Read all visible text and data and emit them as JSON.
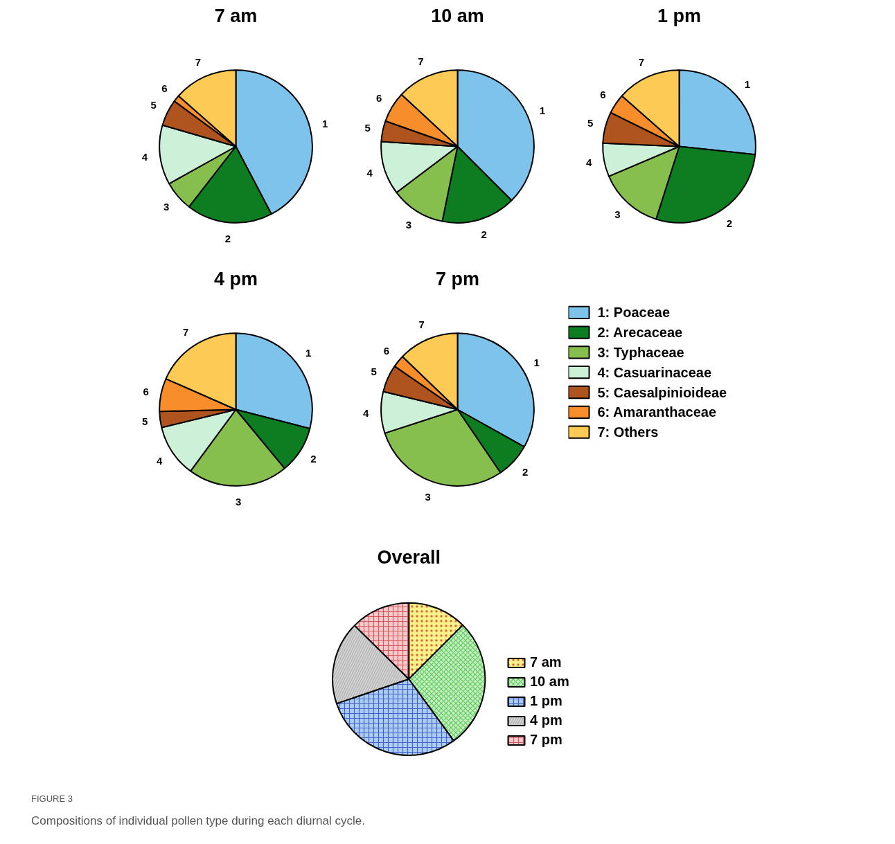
{
  "chart_data": [
    {
      "type": "pie",
      "title": "7 am",
      "categories": [
        "1",
        "2",
        "3",
        "4",
        "5",
        "6",
        "7"
      ],
      "values": [
        42.3,
        18.2,
        6.4,
        12.6,
        5.6,
        1.4,
        13.5
      ],
      "colors": [
        "#7dc3ec",
        "#0e7d22",
        "#86bf4e",
        "#cdf0d8",
        "#b0541f",
        "#f88e2b",
        "#fdca55"
      ]
    },
    {
      "type": "pie",
      "title": "10 am",
      "categories": [
        "1",
        "2",
        "3",
        "4",
        "5",
        "6",
        "7"
      ],
      "values": [
        37.5,
        15.7,
        11.5,
        11.3,
        4.4,
        6.5,
        13.1
      ],
      "colors": [
        "#7dc3ec",
        "#0e7d22",
        "#86bf4e",
        "#cdf0d8",
        "#b0541f",
        "#f88e2b",
        "#fdca55"
      ]
    },
    {
      "type": "pie",
      "title": "1 pm",
      "categories": [
        "1",
        "2",
        "3",
        "4",
        "5",
        "6",
        "7"
      ],
      "values": [
        26.7,
        28.2,
        13.7,
        7.1,
        6.6,
        4.2,
        13.5
      ],
      "colors": [
        "#7dc3ec",
        "#0e7d22",
        "#86bf4e",
        "#cdf0d8",
        "#b0541f",
        "#f88e2b",
        "#fdca55"
      ]
    },
    {
      "type": "pie",
      "title": "4 pm",
      "categories": [
        "1",
        "2",
        "3",
        "4",
        "5",
        "6",
        "7"
      ],
      "values": [
        29.0,
        10.0,
        21.1,
        11.1,
        3.4,
        7.0,
        18.4
      ],
      "colors": [
        "#7dc3ec",
        "#0e7d22",
        "#86bf4e",
        "#cdf0d8",
        "#b0541f",
        "#f88e2b",
        "#fdca55"
      ]
    },
    {
      "type": "pie",
      "title": "7 pm",
      "categories": [
        "1",
        "2",
        "3",
        "4",
        "5",
        "6",
        "7"
      ],
      "values": [
        33.1,
        7.4,
        29.5,
        8.8,
        5.8,
        2.6,
        12.8
      ],
      "colors": [
        "#7dc3ec",
        "#0e7d22",
        "#86bf4e",
        "#cdf0d8",
        "#b0541f",
        "#f88e2b",
        "#fdca55"
      ]
    },
    {
      "type": "other",
      "categories": [
        "1: Poaceae",
        "2: Arecaceae",
        "3: Typhaceae",
        "4: Casuarinaceae",
        "5: Caesalpinioideae",
        "6: Amaranthaceae",
        "7: Others"
      ],
      "colors": [
        "#7dc3ec",
        "#0e7d22",
        "#86bf4e",
        "#cdf0d8",
        "#b0541f",
        "#f88e2b",
        "#fdca55"
      ]
    },
    {
      "type": "pie",
      "title": "Overall",
      "categories": [
        "7 am",
        "10 am",
        "1 pm",
        "4 pm",
        "7 pm"
      ],
      "values": [
        12.5,
        27.5,
        29.8,
        17.6,
        12.6
      ],
      "colors": [
        "#fbf28a",
        "#c8eec4",
        "#a9cff0",
        "#d2d2d2",
        "#f6c9cd"
      ],
      "legend": "right",
      "annotations": [
        "FIGURE 3",
        "Compositions of individual pollen type during each diurnal cycle."
      ]
    }
  ]
}
